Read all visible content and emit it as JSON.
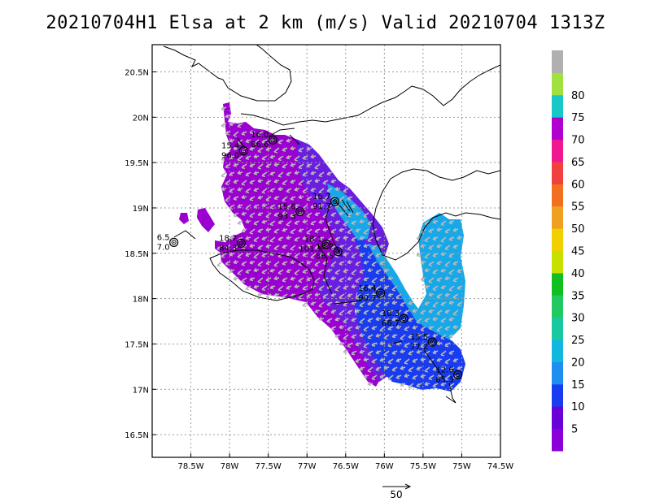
{
  "title": "20210704H1 Elsa at 2 km (m/s) Valid 20210704  1313Z",
  "axes": {
    "lon_min": -79.0,
    "lon_max": -74.5,
    "lat_min": 16.25,
    "lat_max": 20.8,
    "lon_ticks": [
      {
        "v": -78.5,
        "label": "78.5W"
      },
      {
        "v": -78.0,
        "label": "78W"
      },
      {
        "v": -77.5,
        "label": "77.5W"
      },
      {
        "v": -77.0,
        "label": "77W"
      },
      {
        "v": -76.5,
        "label": "76.5W"
      },
      {
        "v": -76.0,
        "label": "76W"
      },
      {
        "v": -75.5,
        "label": "75.5W"
      },
      {
        "v": -75.0,
        "label": "75W"
      },
      {
        "v": -74.5,
        "label": "74.5W"
      }
    ],
    "lat_ticks": [
      {
        "v": 16.5,
        "label": "16.5N"
      },
      {
        "v": 17.0,
        "label": "17N"
      },
      {
        "v": 17.5,
        "label": "17.5N"
      },
      {
        "v": 18.0,
        "label": "18N"
      },
      {
        "v": 18.5,
        "label": "18.5N"
      },
      {
        "v": 19.0,
        "label": "19N"
      },
      {
        "v": 19.5,
        "label": "19.5N"
      },
      {
        "v": 20.0,
        "label": "20N"
      },
      {
        "v": 20.5,
        "label": "20.5N"
      }
    ]
  },
  "colorbar": {
    "labels": [
      "5",
      "10",
      "15",
      "20",
      "25",
      "30",
      "35",
      "40",
      "45",
      "50",
      "55",
      "60",
      "65",
      "70",
      "75",
      "80"
    ],
    "colors": [
      "#8a00d8",
      "#6a00d8",
      "#1a3cf0",
      "#1e8ef0",
      "#12b7e0",
      "#18c8a0",
      "#22c860",
      "#10c020",
      "#c8e000",
      "#f0d000",
      "#f0a020",
      "#f07020",
      "#f04040",
      "#f01890",
      "#b000d0",
      "#18c8c8",
      "#a0e040",
      "#b0b0b0"
    ]
  },
  "colors": {
    "purple": "#9a00d0",
    "violet": "#6a1ee0",
    "blue": "#1a3cf0",
    "lightblue": "#18a8e8",
    "arrow": "#b8b8b8"
  },
  "observations": [
    {
      "lon": -77.82,
      "lat": 19.63,
      "top": "15.4",
      "bottom": "96.0"
    },
    {
      "lon": -77.44,
      "lat": 19.75,
      "top": "16.0",
      "bottom": "86.6"
    },
    {
      "lon": -77.09,
      "lat": 18.96,
      "top": "15.6",
      "bottom": "93.3"
    },
    {
      "lon": -76.64,
      "lat": 19.07,
      "top": "16.7",
      "bottom": "91.7"
    },
    {
      "lon": -78.72,
      "lat": 18.62,
      "top": "6.5",
      "bottom": "7.0"
    },
    {
      "lon": -77.85,
      "lat": 18.61,
      "top": "18.7",
      "bottom": "84.3"
    },
    {
      "lon": -76.75,
      "lat": 18.6,
      "top": "18.1",
      "bottom": "101.1"
    },
    {
      "lon": -76.6,
      "lat": 18.52,
      "top": "18.2",
      "bottom": "86.5"
    },
    {
      "lon": -76.05,
      "lat": 18.06,
      "top": "16.4",
      "bottom": "90.7"
    },
    {
      "lon": -75.75,
      "lat": 17.78,
      "top": "18.3",
      "bottom": "66.7"
    },
    {
      "lon": -75.38,
      "lat": 17.52,
      "top": "15.5",
      "bottom": "77.2"
    },
    {
      "lon": -75.05,
      "lat": 17.16,
      "top": "12.6",
      "bottom": "85.3"
    }
  ],
  "reference_vector": {
    "label": "50"
  }
}
